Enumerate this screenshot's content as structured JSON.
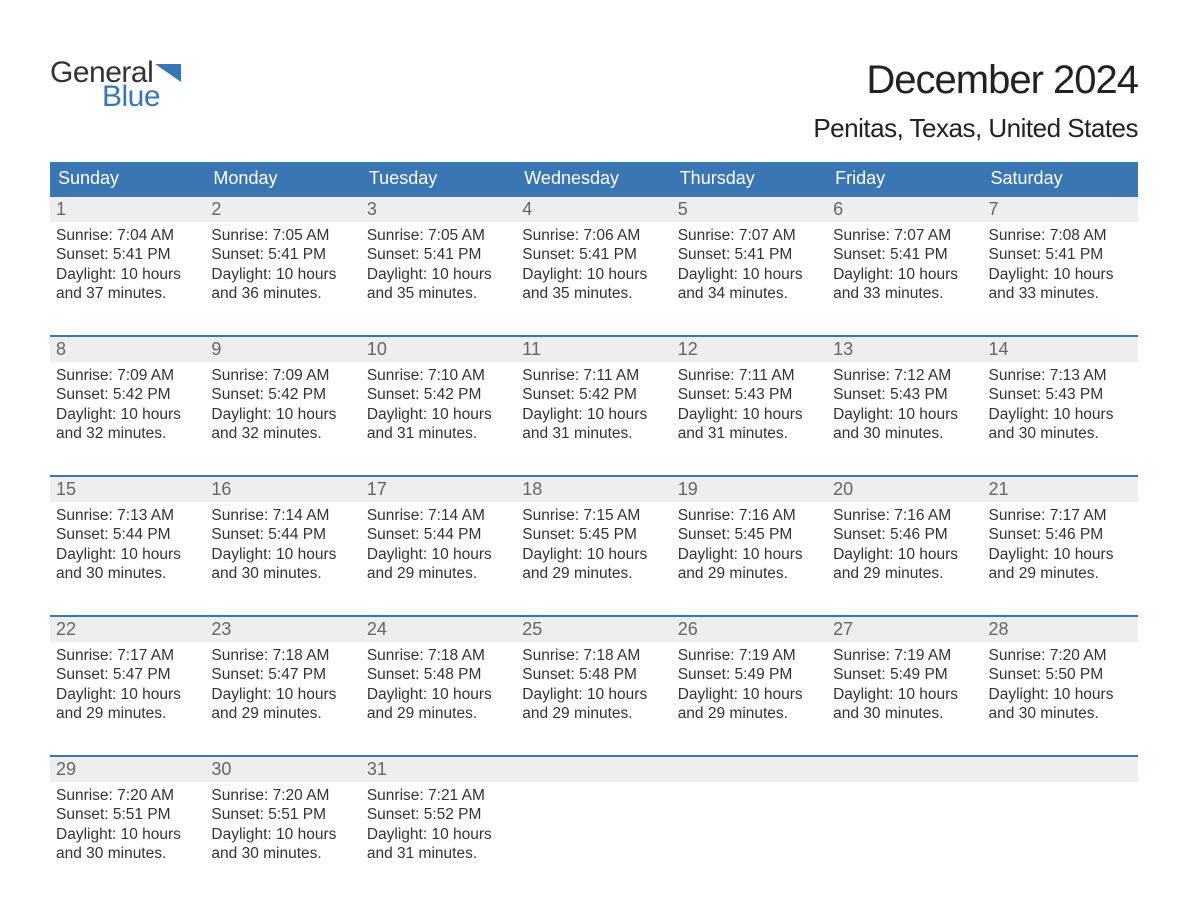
{
  "brand": {
    "word1": "General",
    "word2": "Blue",
    "accent_color": "#3a76b4"
  },
  "title": "December 2024",
  "location": "Penitas, Texas, United States",
  "weekdays": [
    "Sunday",
    "Monday",
    "Tuesday",
    "Wednesday",
    "Thursday",
    "Friday",
    "Saturday"
  ],
  "colors": {
    "header_bg": "#3a76b4",
    "header_text": "#ffffff",
    "daynum_bg": "#eeeeee",
    "daynum_text": "#666666",
    "body_text": "#333333",
    "week_border": "#3a76b4",
    "page_bg": "#ffffff"
  },
  "fonts": {
    "title_size_pt": 30,
    "location_size_pt": 20,
    "weekday_size_pt": 14,
    "daynum_size_pt": 14,
    "body_size_pt": 12
  },
  "days": [
    {
      "n": "1",
      "sunrise": "Sunrise: 7:04 AM",
      "sunset": "Sunset: 5:41 PM",
      "dl1": "Daylight: 10 hours",
      "dl2": "and 37 minutes."
    },
    {
      "n": "2",
      "sunrise": "Sunrise: 7:05 AM",
      "sunset": "Sunset: 5:41 PM",
      "dl1": "Daylight: 10 hours",
      "dl2": "and 36 minutes."
    },
    {
      "n": "3",
      "sunrise": "Sunrise: 7:05 AM",
      "sunset": "Sunset: 5:41 PM",
      "dl1": "Daylight: 10 hours",
      "dl2": "and 35 minutes."
    },
    {
      "n": "4",
      "sunrise": "Sunrise: 7:06 AM",
      "sunset": "Sunset: 5:41 PM",
      "dl1": "Daylight: 10 hours",
      "dl2": "and 35 minutes."
    },
    {
      "n": "5",
      "sunrise": "Sunrise: 7:07 AM",
      "sunset": "Sunset: 5:41 PM",
      "dl1": "Daylight: 10 hours",
      "dl2": "and 34 minutes."
    },
    {
      "n": "6",
      "sunrise": "Sunrise: 7:07 AM",
      "sunset": "Sunset: 5:41 PM",
      "dl1": "Daylight: 10 hours",
      "dl2": "and 33 minutes."
    },
    {
      "n": "7",
      "sunrise": "Sunrise: 7:08 AM",
      "sunset": "Sunset: 5:41 PM",
      "dl1": "Daylight: 10 hours",
      "dl2": "and 33 minutes."
    },
    {
      "n": "8",
      "sunrise": "Sunrise: 7:09 AM",
      "sunset": "Sunset: 5:42 PM",
      "dl1": "Daylight: 10 hours",
      "dl2": "and 32 minutes."
    },
    {
      "n": "9",
      "sunrise": "Sunrise: 7:09 AM",
      "sunset": "Sunset: 5:42 PM",
      "dl1": "Daylight: 10 hours",
      "dl2": "and 32 minutes."
    },
    {
      "n": "10",
      "sunrise": "Sunrise: 7:10 AM",
      "sunset": "Sunset: 5:42 PM",
      "dl1": "Daylight: 10 hours",
      "dl2": "and 31 minutes."
    },
    {
      "n": "11",
      "sunrise": "Sunrise: 7:11 AM",
      "sunset": "Sunset: 5:42 PM",
      "dl1": "Daylight: 10 hours",
      "dl2": "and 31 minutes."
    },
    {
      "n": "12",
      "sunrise": "Sunrise: 7:11 AM",
      "sunset": "Sunset: 5:43 PM",
      "dl1": "Daylight: 10 hours",
      "dl2": "and 31 minutes."
    },
    {
      "n": "13",
      "sunrise": "Sunrise: 7:12 AM",
      "sunset": "Sunset: 5:43 PM",
      "dl1": "Daylight: 10 hours",
      "dl2": "and 30 minutes."
    },
    {
      "n": "14",
      "sunrise": "Sunrise: 7:13 AM",
      "sunset": "Sunset: 5:43 PM",
      "dl1": "Daylight: 10 hours",
      "dl2": "and 30 minutes."
    },
    {
      "n": "15",
      "sunrise": "Sunrise: 7:13 AM",
      "sunset": "Sunset: 5:44 PM",
      "dl1": "Daylight: 10 hours",
      "dl2": "and 30 minutes."
    },
    {
      "n": "16",
      "sunrise": "Sunrise: 7:14 AM",
      "sunset": "Sunset: 5:44 PM",
      "dl1": "Daylight: 10 hours",
      "dl2": "and 30 minutes."
    },
    {
      "n": "17",
      "sunrise": "Sunrise: 7:14 AM",
      "sunset": "Sunset: 5:44 PM",
      "dl1": "Daylight: 10 hours",
      "dl2": "and 29 minutes."
    },
    {
      "n": "18",
      "sunrise": "Sunrise: 7:15 AM",
      "sunset": "Sunset: 5:45 PM",
      "dl1": "Daylight: 10 hours",
      "dl2": "and 29 minutes."
    },
    {
      "n": "19",
      "sunrise": "Sunrise: 7:16 AM",
      "sunset": "Sunset: 5:45 PM",
      "dl1": "Daylight: 10 hours",
      "dl2": "and 29 minutes."
    },
    {
      "n": "20",
      "sunrise": "Sunrise: 7:16 AM",
      "sunset": "Sunset: 5:46 PM",
      "dl1": "Daylight: 10 hours",
      "dl2": "and 29 minutes."
    },
    {
      "n": "21",
      "sunrise": "Sunrise: 7:17 AM",
      "sunset": "Sunset: 5:46 PM",
      "dl1": "Daylight: 10 hours",
      "dl2": "and 29 minutes."
    },
    {
      "n": "22",
      "sunrise": "Sunrise: 7:17 AM",
      "sunset": "Sunset: 5:47 PM",
      "dl1": "Daylight: 10 hours",
      "dl2": "and 29 minutes."
    },
    {
      "n": "23",
      "sunrise": "Sunrise: 7:18 AM",
      "sunset": "Sunset: 5:47 PM",
      "dl1": "Daylight: 10 hours",
      "dl2": "and 29 minutes."
    },
    {
      "n": "24",
      "sunrise": "Sunrise: 7:18 AM",
      "sunset": "Sunset: 5:48 PM",
      "dl1": "Daylight: 10 hours",
      "dl2": "and 29 minutes."
    },
    {
      "n": "25",
      "sunrise": "Sunrise: 7:18 AM",
      "sunset": "Sunset: 5:48 PM",
      "dl1": "Daylight: 10 hours",
      "dl2": "and 29 minutes."
    },
    {
      "n": "26",
      "sunrise": "Sunrise: 7:19 AM",
      "sunset": "Sunset: 5:49 PM",
      "dl1": "Daylight: 10 hours",
      "dl2": "and 29 minutes."
    },
    {
      "n": "27",
      "sunrise": "Sunrise: 7:19 AM",
      "sunset": "Sunset: 5:49 PM",
      "dl1": "Daylight: 10 hours",
      "dl2": "and 30 minutes."
    },
    {
      "n": "28",
      "sunrise": "Sunrise: 7:20 AM",
      "sunset": "Sunset: 5:50 PM",
      "dl1": "Daylight: 10 hours",
      "dl2": "and 30 minutes."
    },
    {
      "n": "29",
      "sunrise": "Sunrise: 7:20 AM",
      "sunset": "Sunset: 5:51 PM",
      "dl1": "Daylight: 10 hours",
      "dl2": "and 30 minutes."
    },
    {
      "n": "30",
      "sunrise": "Sunrise: 7:20 AM",
      "sunset": "Sunset: 5:51 PM",
      "dl1": "Daylight: 10 hours",
      "dl2": "and 30 minutes."
    },
    {
      "n": "31",
      "sunrise": "Sunrise: 7:21 AM",
      "sunset": "Sunset: 5:52 PM",
      "dl1": "Daylight: 10 hours",
      "dl2": "and 31 minutes."
    }
  ],
  "layout": {
    "start_weekday": 0,
    "total_cells": 35,
    "weeks": 5,
    "cols": 7
  }
}
